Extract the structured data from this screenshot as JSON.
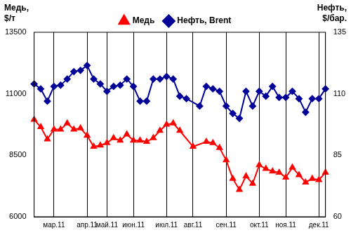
{
  "chart_data": {
    "type": "line",
    "ylabel": "Медь, $/т",
    "y2label": "Нефть, $/бар.",
    "categories": [
      null,
      null,
      null,
      "мар.11",
      null,
      null,
      null,
      null,
      "апр.11",
      null,
      null,
      "май.11",
      null,
      null,
      null,
      "июн.11",
      null,
      null,
      null,
      null,
      "июл.11",
      null,
      null,
      null,
      "авг.11",
      null,
      null,
      null,
      null,
      "сен.11",
      null,
      null,
      null,
      null,
      "окт.11",
      null,
      null,
      null,
      "ноя.11",
      null,
      null,
      null,
      null,
      "дек.11",
      null
    ],
    "series": [
      {
        "name": "Медь",
        "color": "#ff0000",
        "marker": "triangle",
        "axis": "y",
        "values": [
          9950,
          9650,
          9150,
          9550,
          9550,
          9800,
          9550,
          9600,
          9300,
          8850,
          8900,
          9000,
          9200,
          9100,
          9350,
          9100,
          9100,
          9050,
          9200,
          9500,
          9750,
          9800,
          9500,
          null,
          8850,
          null,
          9050,
          9000,
          8800,
          8300,
          7550,
          7100,
          7650,
          7350,
          8100,
          7950,
          7850,
          7800,
          7600,
          8000,
          7700,
          7400,
          7550,
          7500,
          7800
        ]
      },
      {
        "name": "Нефть, Brent",
        "color": "#000099",
        "marker": "diamond",
        "axis": "y2",
        "values": [
          114,
          112,
          107,
          113,
          113.5,
          116,
          119,
          119.5,
          121.5,
          116,
          114,
          111,
          113,
          113.5,
          116,
          113,
          107,
          107,
          116,
          116,
          117,
          116,
          109,
          108,
          null,
          105,
          113,
          112,
          111,
          105,
          102,
          100,
          111,
          105,
          111,
          109,
          113,
          108.5,
          108.5,
          111,
          108,
          102.5,
          108,
          108,
          112
        ]
      }
    ],
    "ylim": [
      6000,
      13500
    ],
    "yticks": [
      6000,
      8500,
      11000,
      13500
    ],
    "y2lim": [
      60,
      135
    ],
    "y2ticks": [
      60,
      85,
      110,
      135
    ],
    "grid": true,
    "legend": "top"
  }
}
